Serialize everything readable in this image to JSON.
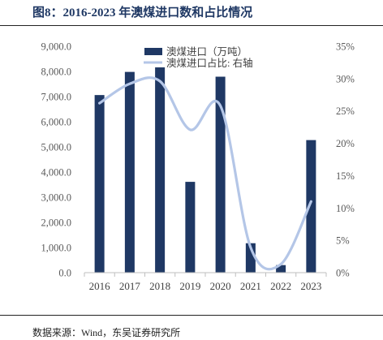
{
  "header": {
    "title": "图8：2016-2023 年澳煤进口数和占比情况"
  },
  "footer": {
    "source": "数据来源：Wind，东吴证券研究所"
  },
  "colors": {
    "title": "#1f3864",
    "bar": "#1f3864",
    "line": "#b4c6e7",
    "axis_line": "#bfbfbf",
    "rule": "#222222"
  },
  "chart_data": {
    "type": "bar",
    "title": "",
    "categories": [
      "2016",
      "2017",
      "2018",
      "2019",
      "2020",
      "2021",
      "2022",
      "2023"
    ],
    "series": [
      {
        "name": "澳煤进口（万吨）",
        "type": "bar",
        "y_axis": "left",
        "color": "#1f3864",
        "values": [
          7060,
          7980,
          8160,
          3610,
          7790,
          1170,
          300,
          5270
        ]
      },
      {
        "name": "澳煤进口占比: 右轴",
        "type": "line",
        "y_axis": "right",
        "smooth": true,
        "color": "#b4c6e7",
        "values": [
          26.2,
          29.2,
          29.6,
          22.1,
          25.8,
          3.9,
          1.3,
          11.0
        ]
      }
    ],
    "y_left": {
      "ylim": [
        0,
        9000
      ],
      "tick_labels": [
        "0.0",
        "1,000.0",
        "2,000.0",
        "3,000.0",
        "4,000.0",
        "5,000.0",
        "6,000.0",
        "7,000.0",
        "8,000.0",
        "9,000.0"
      ]
    },
    "y_right": {
      "ylim": [
        0,
        35
      ],
      "tick_labels": [
        "0%",
        "5%",
        "10%",
        "15%",
        "20%",
        "25%",
        "30%",
        "35%"
      ]
    },
    "legend": "top-center",
    "grid": false
  }
}
